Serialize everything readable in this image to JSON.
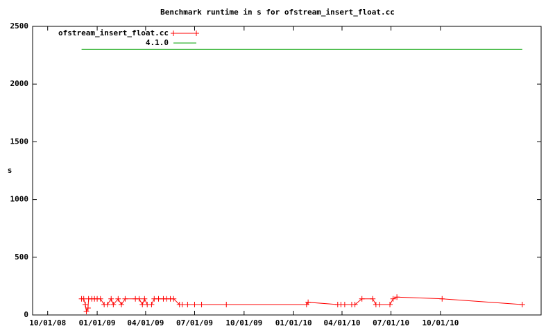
{
  "chart_data": {
    "type": "line",
    "title": "Benchmark runtime in s for ofstream_insert_float.cc",
    "ylabel": "s",
    "xlim": [
      "09/03/08",
      "04/06/11"
    ],
    "xticks": [
      "10/01/08",
      "01/01/09",
      "04/01/09",
      "07/01/09",
      "10/01/09",
      "01/01/10",
      "04/01/10",
      "07/01/10",
      "10/01/10"
    ],
    "ylim": [
      0,
      2500
    ],
    "yticks": [
      0,
      500,
      1000,
      1500,
      2000,
      2500
    ],
    "legend": "top-left",
    "series": [
      {
        "name": "ofstream_insert_float.cc",
        "color": "#ff0000",
        "markers": true,
        "x": [
          "12/03/08",
          "12/07/08",
          "12/10/08",
          "12/12/08",
          "12/15/08",
          "12/16/08",
          "12/22/08",
          "12/27/08",
          "01/01/09",
          "01/07/09",
          "01/14/09",
          "01/20/09",
          "01/27/09",
          "01/31/09",
          "02/09/09",
          "02/15/09",
          "02/22/09",
          "03/13/09",
          "03/20/09",
          "03/26/09",
          "03/30/09",
          "04/04/09",
          "04/12/09",
          "04/17/09",
          "04/25/09",
          "05/04/09",
          "05/10/09",
          "05/17/09",
          "05/23/09",
          "06/03/09",
          "06/08/09",
          "06/18/09",
          "07/01/09",
          "07/14/09",
          "08/29/09",
          "01/25/10",
          "01/28/10",
          "03/24/10",
          "03/30/10",
          "04/06/10",
          "04/19/10",
          "04/25/10",
          "05/08/10",
          "05/28/10",
          "06/03/10",
          "06/10/10",
          "06/29/10",
          "07/05/10",
          "07/12/10",
          "10/04/10",
          "03/02/11"
        ],
        "values": [
          140,
          140,
          90,
          30,
          60,
          140,
          140,
          140,
          140,
          140,
          90,
          90,
          140,
          90,
          140,
          90,
          140,
          140,
          140,
          90,
          140,
          90,
          90,
          140,
          140,
          140,
          140,
          140,
          140,
          90,
          90,
          90,
          90,
          90,
          90,
          90,
          110,
          90,
          90,
          90,
          90,
          90,
          140,
          140,
          90,
          90,
          90,
          140,
          155,
          140,
          90
        ]
      },
      {
        "name": "4.1.0",
        "color": "#00a000",
        "markers": false,
        "x": [
          "12/03/08",
          "03/02/11"
        ],
        "values": [
          2300,
          2300
        ]
      }
    ]
  }
}
